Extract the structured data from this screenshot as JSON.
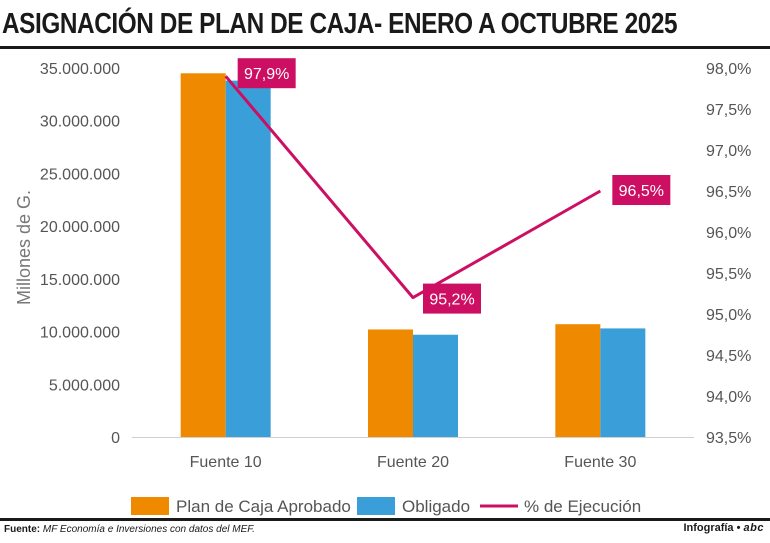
{
  "title": "ASIGNACIÓN DE PLAN DE CAJA- ENERO A OCTUBRE 2025",
  "footer": {
    "source_label": "Fuente:",
    "source_text": "MF Economía e Inversiones con datos del MEF.",
    "brand_label": "Infografía •",
    "brand_logo": "abc"
  },
  "colors": {
    "plan": "#ef8a00",
    "obligado": "#3a9ed8",
    "ejecucion": "#cc0f63",
    "axis_text": "#555555"
  },
  "chart_data": {
    "type": "bar",
    "categories": [
      "Fuente 10",
      "Fuente 20",
      "Fuente 30"
    ],
    "series": [
      {
        "name": "Plan de Caja Aprobado",
        "values": [
          34500000,
          10200000,
          10700000
        ]
      },
      {
        "name": "Obligado",
        "values": [
          33800000,
          9700000,
          10300000
        ]
      }
    ],
    "line_series": {
      "name": "% de Ejecución",
      "values": [
        97.9,
        95.2,
        96.5
      ],
      "labels": [
        "97,9%",
        "95,2%",
        "96,5%"
      ],
      "axis": "right"
    },
    "ylabel": "Millones de G.",
    "ylim": [
      0,
      35000000
    ],
    "y_ticks": [
      "0",
      "5.000.000",
      "10.000.000",
      "15.000.000",
      "20.000.000",
      "25.000.000",
      "30.000.000",
      "35.000.000"
    ],
    "y2lim": [
      93.5,
      98.0
    ],
    "y2_ticks": [
      "93,5%",
      "94,0%",
      "94,5%",
      "95,0%",
      "95,5%",
      "96,0%",
      "96,5%",
      "97,0%",
      "97,5%",
      "98,0%"
    ],
    "legend": [
      "Plan de Caja Aprobado",
      "Obligado",
      "% de Ejecución"
    ],
    "legend_position": "bottom",
    "grid": false
  }
}
